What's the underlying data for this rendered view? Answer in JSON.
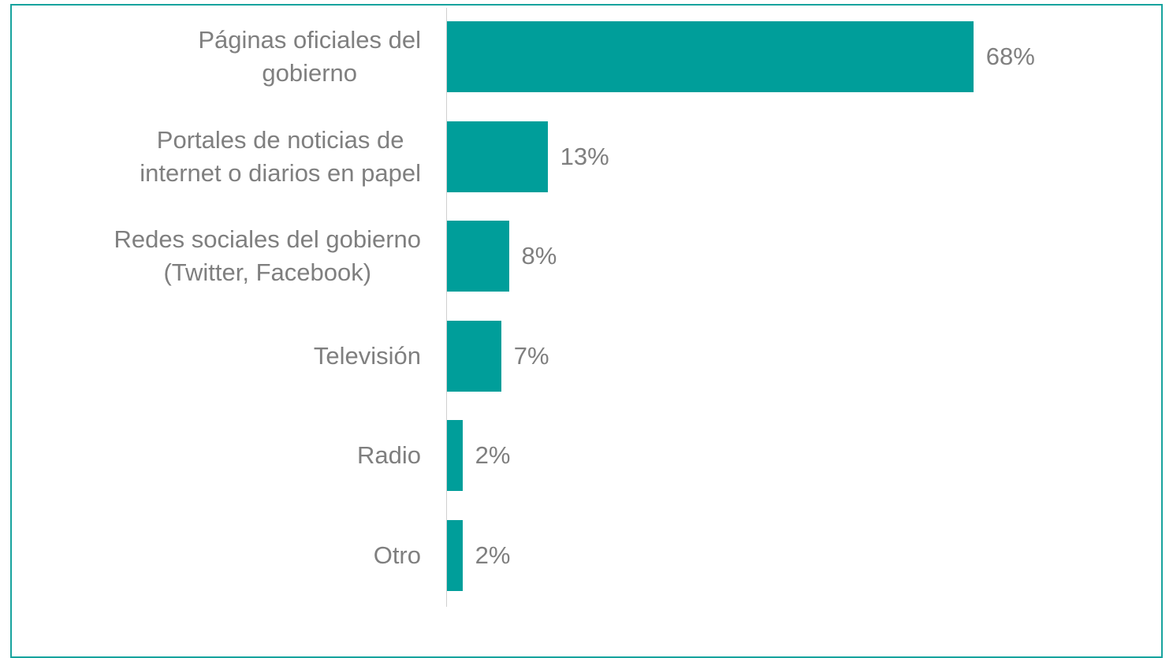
{
  "chart_data": {
    "type": "bar",
    "orientation": "horizontal",
    "categories": [
      "Páginas oficiales del\ngobierno",
      "Portales de noticias de\ninternet o diarios en papel",
      "Redes sociales del gobierno\n(Twitter, Facebook)",
      "Televisión",
      "Radio",
      "Otro"
    ],
    "values": [
      68,
      13,
      8,
      7,
      2,
      2
    ],
    "value_labels": [
      "68%",
      "13%",
      "8%",
      "7%",
      "2%",
      "2%"
    ],
    "color": "#009e9a"
  }
}
